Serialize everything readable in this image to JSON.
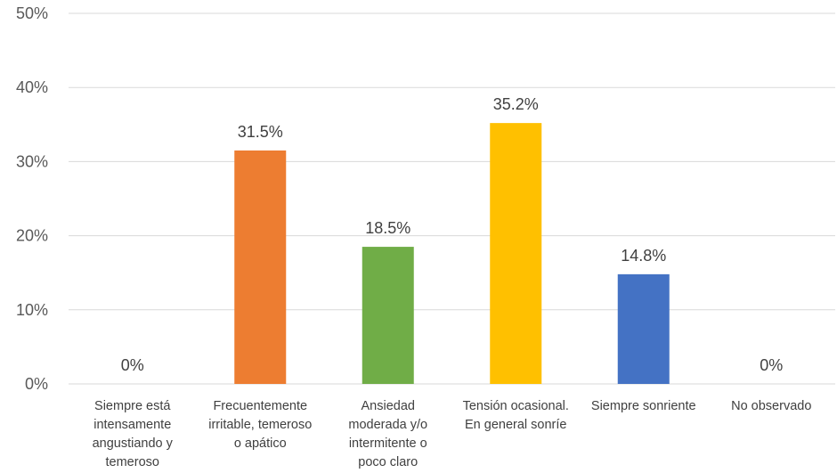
{
  "chart_data": {
    "type": "bar",
    "categories": [
      [
        "Siempre está",
        "intensamente",
        "angustiando y",
        "temeroso"
      ],
      [
        "Frecuentemente",
        "irritable, temeroso",
        "o apático"
      ],
      [
        "Ansiedad",
        "moderada y/o",
        "intermitente o",
        "poco claro"
      ],
      [
        "Tensión ocasional.",
        "En general sonríe"
      ],
      [
        "Siempre sonriente"
      ],
      [
        "No observado"
      ]
    ],
    "values": [
      0,
      31.5,
      18.5,
      35.2,
      14.8,
      0
    ],
    "data_labels": [
      "0%",
      "31.5%",
      "18.5%",
      "35.2%",
      "14.8%",
      "0%"
    ],
    "colors": [
      "#4472C4",
      "#ED7D31",
      "#70AD47",
      "#FFC000",
      "#4472C4",
      "#A5A5A5"
    ],
    "yticks": [
      "0%",
      "10%",
      "20%",
      "30%",
      "40%",
      "50%"
    ],
    "ylim": [
      0,
      50
    ],
    "grid": true,
    "title": "",
    "xlabel": "",
    "ylabel": ""
  }
}
